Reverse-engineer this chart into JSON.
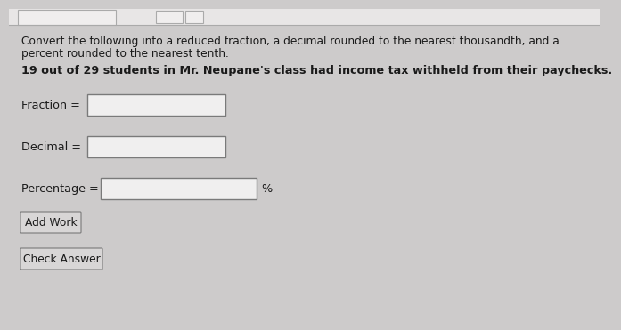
{
  "bg_color": "#cdcbcb",
  "text_color": "#1a1a1a",
  "title_line1": "Convert the following into a reduced fraction, a decimal rounded to the nearest thousandth, and a",
  "title_line2": "percent rounded to the nearest tenth.",
  "problem_text": "19 out of 29 students in Mr. Neupane's class had income tax withheld from their paychecks.",
  "label_fraction": "Fraction =",
  "label_decimal": "Decimal =",
  "label_percentage": "Percentage =",
  "percent_symbol": "%",
  "btn_add_work": "Add Work",
  "btn_check": "Check Answer",
  "box_fill": "#f0efef",
  "box_edge": "#7a7a7a",
  "btn_fill": "#d8d6d6",
  "btn_edge": "#7a7a7a",
  "top_area_color": "#e8e6e6",
  "top_line_color": "#aaaaaa",
  "font_size_title": 8.8,
  "font_size_problem": 9.2,
  "font_size_label": 9.2,
  "font_size_btn": 8.8
}
